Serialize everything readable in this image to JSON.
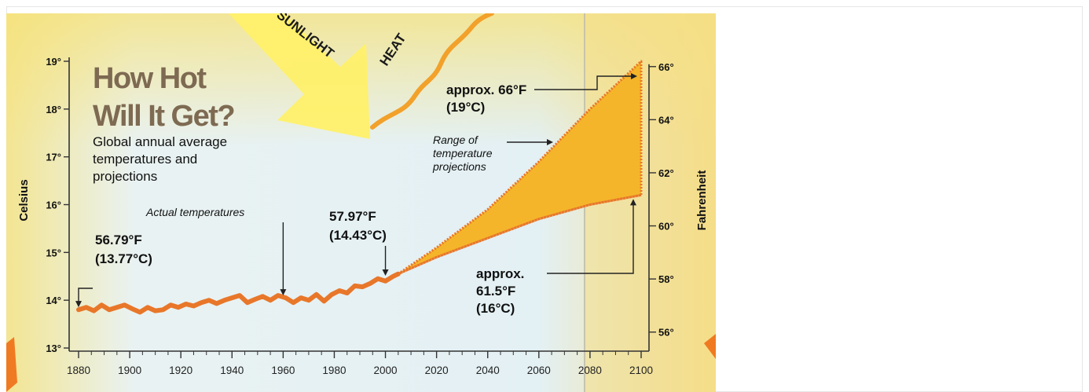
{
  "chart_data": {
    "type": "area",
    "title": "How Hot Will It Get?",
    "title_lines": [
      "How Hot",
      "Will It Get?"
    ],
    "subtitle_lines": [
      "Global annual average",
      "temperatures and",
      "projections"
    ],
    "ylabel_left": "Celsius",
    "ylabel_right": "Fahrenheit",
    "xlim": [
      1880,
      2100
    ],
    "ylim_celsius": [
      13,
      19
    ],
    "x_ticks": [
      "1880",
      "1900",
      "1920",
      "1940",
      "1960",
      "1980",
      "2000",
      "2020",
      "2040",
      "2060",
      "2080",
      "2100"
    ],
    "y_ticks_left": [
      "13°",
      "14°",
      "15°",
      "16°",
      "17°",
      "18°",
      "19°"
    ],
    "y_ticks_right": [
      "56°",
      "58°",
      "60°",
      "62°",
      "64°",
      "66°"
    ],
    "y_ticks_right_values_f": [
      56,
      58,
      60,
      62,
      64,
      66
    ],
    "series": [
      {
        "name": "Actual temperatures",
        "x": [
          1880,
          1883,
          1886,
          1889,
          1892,
          1895,
          1898,
          1901,
          1904,
          1907,
          1910,
          1913,
          1916,
          1919,
          1922,
          1925,
          1928,
          1931,
          1934,
          1937,
          1940,
          1943,
          1946,
          1949,
          1952,
          1955,
          1958,
          1961,
          1964,
          1967,
          1970,
          1973,
          1976,
          1979,
          1982,
          1985,
          1988,
          1991,
          1994,
          1997,
          2000,
          2003,
          2005
        ],
        "values": [
          13.8,
          13.85,
          13.78,
          13.9,
          13.8,
          13.85,
          13.9,
          13.82,
          13.75,
          13.85,
          13.78,
          13.8,
          13.9,
          13.85,
          13.92,
          13.88,
          13.95,
          14.0,
          13.93,
          14.0,
          14.05,
          14.1,
          13.95,
          14.02,
          14.08,
          14.0,
          14.1,
          14.05,
          13.95,
          14.05,
          14.0,
          14.12,
          13.98,
          14.12,
          14.2,
          14.15,
          14.3,
          14.28,
          14.35,
          14.45,
          14.4,
          14.5,
          14.55
        ]
      },
      {
        "name": "Range of temperature projections",
        "x": [
          2005,
          2020,
          2040,
          2060,
          2080,
          2100
        ],
        "upper": [
          14.55,
          15.1,
          15.9,
          16.9,
          18.0,
          19.0
        ],
        "lower": [
          14.55,
          14.9,
          15.3,
          15.7,
          16.0,
          16.2
        ]
      }
    ],
    "annotations": [
      {
        "lines": [
          "56.79°F",
          "(13.77°C)"
        ],
        "x": 1880,
        "y": 13.77
      },
      {
        "lines": [
          "Actual temperatures"
        ],
        "x": 1960,
        "y": 14.05
      },
      {
        "lines": [
          "57.97°F",
          "(14.43°C)"
        ],
        "x": 2000,
        "y": 14.43
      },
      {
        "lines": [
          "approx. 66°F",
          "(19°C)"
        ],
        "x": 2100,
        "y": 19.0
      },
      {
        "lines": [
          "Range of",
          "temperature",
          "projections"
        ],
        "x": 2068,
        "y": 17.4
      },
      {
        "lines": [
          "approx.",
          "61.5°F",
          "(16°C)"
        ],
        "x": 2100,
        "y": 16.2
      }
    ],
    "background_labels": [
      "SUNLIGHT",
      "HEAT"
    ],
    "colors": {
      "actual_line": "#e8772a",
      "projection_fill": "#f5b52a",
      "projection_edge": "#e8772a",
      "sunlight": "#fff06a",
      "heat": "#f2a12a",
      "title_brown": "#7e6a52",
      "bg_blue": "#e6f1f4",
      "bg_yellow": "#f4e37a"
    },
    "grid": false,
    "legend": "none"
  }
}
